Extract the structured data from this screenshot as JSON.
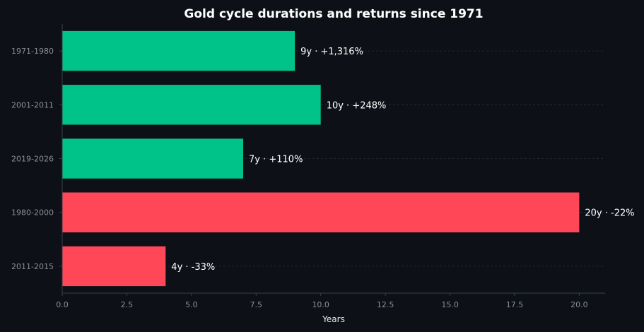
{
  "chart_data": {
    "type": "bar",
    "orientation": "horizontal",
    "title": "Gold cycle durations and returns since 1971",
    "xlabel": "Years",
    "ylabel": "",
    "xlim": [
      0,
      21
    ],
    "x_ticks": [
      "0.0",
      "2.5",
      "5.0",
      "7.5",
      "10.0",
      "12.5",
      "15.0",
      "17.5",
      "20.0"
    ],
    "categories": [
      "1971-1980",
      "2001-2011",
      "2019-2026",
      "1980-2000",
      "2011-2015"
    ],
    "values": [
      9,
      10,
      7,
      20,
      4
    ],
    "data_labels": [
      "9y · +1,316%",
      "10y · +248%",
      "7y · +110%",
      "20y · -22%",
      "4y · -33%"
    ],
    "bar_colors": [
      "#00c389",
      "#00c389",
      "#00c389",
      "#ff4757",
      "#ff4757"
    ],
    "grid": "horizontal dashed",
    "legend": "none"
  },
  "colors": {
    "background": "#0d1117",
    "bull": "#00c389",
    "bear": "#ff4757"
  }
}
